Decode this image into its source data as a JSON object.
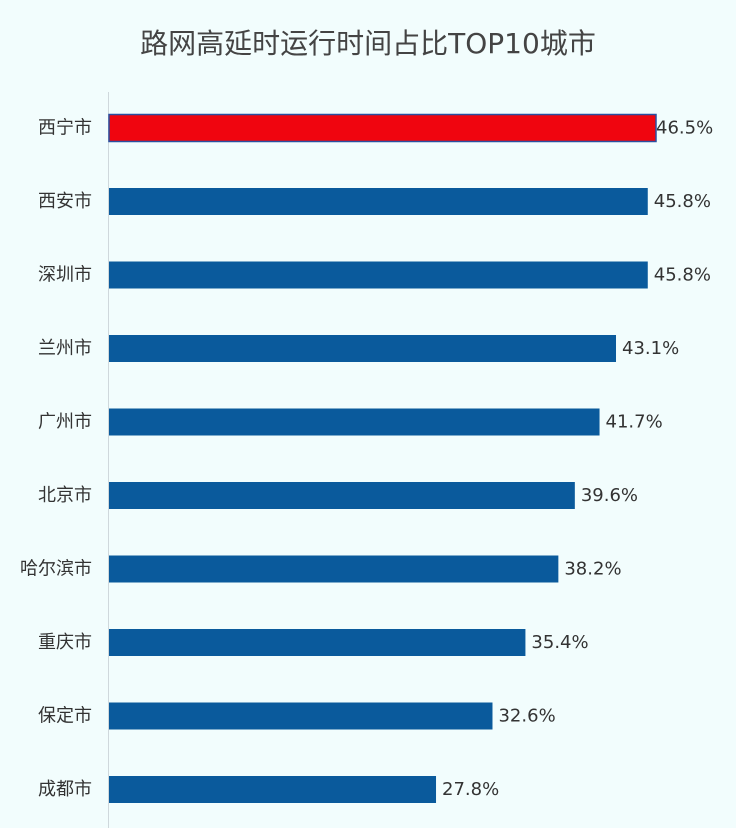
{
  "chart_data": {
    "type": "bar",
    "orientation": "horizontal",
    "title": "路网高延时运行时间占比TOP10城市",
    "categories": [
      "西宁市",
      "西安市",
      "深圳市",
      "兰州市",
      "广州市",
      "北京市",
      "哈尔滨市",
      "重庆市",
      "保定市",
      "成都市"
    ],
    "values": [
      46.5,
      45.8,
      45.8,
      43.1,
      41.7,
      39.6,
      38.2,
      35.4,
      32.6,
      27.8
    ],
    "value_labels": [
      "46.5%",
      "45.8%",
      "45.8%",
      "43.1%",
      "41.7%",
      "39.6%",
      "38.2%",
      "35.4%",
      "32.6%",
      "27.8%"
    ],
    "unit": "%",
    "xlim": [
      0,
      50
    ],
    "grid": false,
    "legend": "none",
    "colors": {
      "default": "#0a5a9c",
      "highlight": "#f0050f",
      "highlight_border": "#2a4fa0"
    },
    "highlight_index": 0
  }
}
